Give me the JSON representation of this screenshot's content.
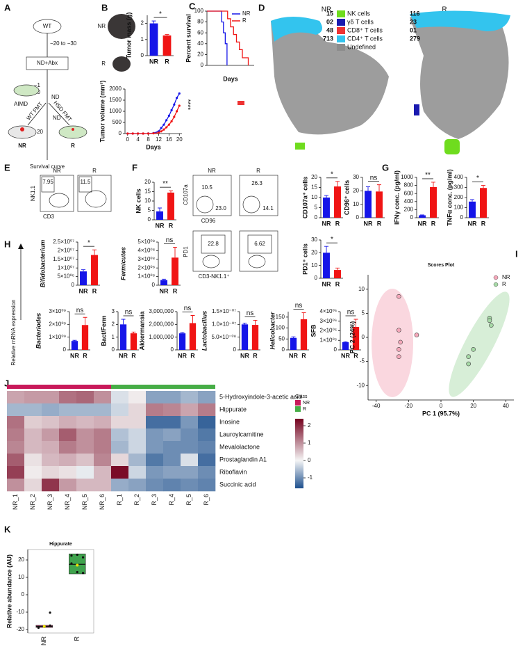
{
  "panels": [
    "A",
    "B",
    "C",
    "D",
    "E",
    "F",
    "G",
    "H",
    "I",
    "J",
    "K"
  ],
  "diagram": {
    "wt": "WT",
    "days": "−20 to −30",
    "treat": "ND+Abx",
    "d1": "−1",
    "d0": "0",
    "aimd": "AIMD",
    "nd_top": "ND",
    "wt_fmt": "WT FMT",
    "hsd_fmt": "HSD FMT",
    "nd": "ND",
    "d20": "20",
    "nr": "NR",
    "r": "R",
    "survival": "Survival curve"
  },
  "photo_labels": [
    "NR",
    "R"
  ],
  "tsne": {
    "titles": [
      "NR",
      "R"
    ],
    "legend": [
      {
        "name": "NK cells",
        "color": "#6fdc1e",
        "nr": 15,
        "r": 116
      },
      {
        "name": "γδ T cells",
        "color": "#1a1ab0",
        "nr": "02",
        "r": 23
      },
      {
        "name": "CD8⁺ T cells",
        "color": "#ee3333",
        "nr": 48,
        "r": "01"
      },
      {
        "name": "CD4⁺ T cells",
        "color": "#33c4ee",
        "nr": 713,
        "r": 279
      },
      {
        "name": "Undefined",
        "color": "#8c8c8c"
      }
    ]
  },
  "flow": {
    "e": {
      "nr": "NR",
      "r": "R",
      "g1": "7.95",
      "g2": "11.5",
      "y": "NK1.1",
      "x": "CD3"
    },
    "f": {
      "nr": "NR",
      "r": "R",
      "g1": "10.5",
      "g2": "23.0",
      "g3": "26.3",
      "g4": "14.1",
      "y": "CD107a",
      "x": "CD96",
      "g5": "22.8",
      "g6": "6.62",
      "y2": "PD1",
      "x2": "CD3-NK1.1⁺"
    }
  },
  "h_label": "Relative mRNA expression",
  "chart_data": [
    {
      "type": "bar",
      "ylabel": "Tumor mass (g)",
      "categories": [
        "NR",
        "R"
      ],
      "values": [
        2.0,
        1.25
      ],
      "errors": [
        0.15,
        0.06
      ],
      "colors": [
        "#1515e8",
        "#f01414"
      ],
      "ylim": [
        0,
        2.5
      ],
      "yticks": [
        0,
        1,
        2
      ],
      "annotation": "*"
    },
    {
      "type": "line",
      "ylabel": "Tumor volume (mm³)",
      "xlabel": "Days",
      "x": [
        0,
        2,
        4,
        6,
        8,
        10,
        12,
        13,
        14,
        15,
        16,
        17,
        18,
        19,
        20
      ],
      "xlim": [
        -1,
        21
      ],
      "xticks": [
        0,
        4,
        8,
        12,
        16,
        20
      ],
      "ylim": [
        0,
        2000
      ],
      "yticks": [
        0,
        500,
        1000,
        1500,
        2000
      ],
      "annotation": "****",
      "markers": true,
      "series": [
        {
          "name": "NR",
          "color": "#1515e8",
          "values": [
            0,
            0,
            0,
            0,
            5,
            20,
            100,
            250,
            400,
            600,
            800,
            1050,
            1300,
            1600,
            1800
          ]
        },
        {
          "name": "R",
          "color": "#f01414",
          "values": [
            0,
            0,
            0,
            0,
            0,
            10,
            40,
            100,
            180,
            280,
            400,
            550,
            750,
            1000,
            1250
          ]
        }
      ]
    },
    {
      "type": "line",
      "ylabel": "Percent survival",
      "xlabel": "Days",
      "xlim": [
        0,
        80
      ],
      "ylim": [
        0,
        100
      ],
      "yticks": [
        0,
        20,
        40,
        60,
        80,
        100
      ],
      "legend": "upper right",
      "series": [
        {
          "name": "NR",
          "color": "#1515e8",
          "x": [
            0,
            25,
            25,
            28,
            28,
            31,
            31,
            34,
            34
          ],
          "values": [
            100,
            100,
            80,
            80,
            60,
            60,
            40,
            40,
            0
          ]
        },
        {
          "name": "R",
          "color": "#f01414",
          "x": [
            0,
            35,
            35,
            40,
            40,
            45,
            45,
            50,
            50,
            55,
            55,
            60,
            60,
            70,
            70
          ],
          "values": [
            100,
            100,
            86,
            86,
            71,
            71,
            57,
            57,
            43,
            43,
            29,
            29,
            14,
            14,
            0
          ]
        }
      ]
    },
    {
      "type": "bar",
      "ylabel": "NK cells",
      "categories": [
        "NR",
        "R"
      ],
      "values": [
        4.5,
        14.5
      ],
      "errors": [
        1.8,
        1.0
      ],
      "colors": [
        "#1515e8",
        "#f01414"
      ],
      "ylim": [
        0,
        20
      ],
      "yticks": [
        0,
        5,
        10,
        15,
        20
      ],
      "annotation": "**"
    },
    {
      "type": "bar",
      "ylabel": "CD107a⁺ cells",
      "categories": [
        "NR",
        "R"
      ],
      "values": [
        10,
        15.5
      ],
      "errors": [
        1,
        2.5
      ],
      "colors": [
        "#1515e8",
        "#f01414"
      ],
      "ylim": [
        0,
        20
      ],
      "yticks": [
        0,
        5,
        10,
        15,
        20
      ],
      "annotation": "*"
    },
    {
      "type": "bar",
      "ylabel": "CD96⁺ cells",
      "categories": [
        "NR",
        "R"
      ],
      "values": [
        20,
        19.5
      ],
      "errors": [
        3,
        5
      ],
      "colors": [
        "#1515e8",
        "#f01414"
      ],
      "ylim": [
        0,
        30
      ],
      "yticks": [
        0,
        10,
        20,
        30
      ],
      "annotation": "ns"
    },
    {
      "type": "bar",
      "ylabel": "PD1⁺ cells",
      "categories": [
        "NR",
        "R"
      ],
      "values": [
        20,
        6.5
      ],
      "errors": [
        5,
        1.5
      ],
      "colors": [
        "#1515e8",
        "#f01414"
      ],
      "ylim": [
        0,
        30
      ],
      "yticks": [
        0,
        10,
        20,
        30
      ],
      "annotation": "*"
    },
    {
      "type": "bar",
      "ylabel": "IFNγ conc. (pg/ml)",
      "categories": [
        "NR",
        "R"
      ],
      "values": [
        60,
        760
      ],
      "errors": [
        10,
        120
      ],
      "colors": [
        "#1515e8",
        "#f01414"
      ],
      "ylim": [
        0,
        1000
      ],
      "yticks": [
        0,
        200,
        400,
        600,
        800,
        1000
      ],
      "annotation": "**"
    },
    {
      "type": "bar",
      "ylabel": "TNFα conc. (pg/ml)",
      "categories": [
        "NR",
        "R"
      ],
      "values": [
        160,
        295
      ],
      "errors": [
        20,
        25
      ],
      "colors": [
        "#1515e8",
        "#f01414"
      ],
      "ylim": [
        0,
        400
      ],
      "yticks": [
        0,
        100,
        200,
        300,
        400
      ],
      "annotation": "*"
    },
    {
      "type": "bar",
      "ylabel": "Bifidobacterium",
      "categories": [
        "NR",
        "R"
      ],
      "values": [
        8000000,
        17500000
      ],
      "errors": [
        1000000,
        3000000
      ],
      "colors": [
        "#1515e8",
        "#f01414"
      ],
      "ylim": [
        0,
        25000000
      ],
      "yticks": [
        0,
        {
          "value": 5000000,
          "label": "5×10⁰⁶"
        },
        {
          "value": 10000000,
          "label": "1×10⁰⁷"
        },
        {
          "value": 15000000,
          "label": "1.5×10⁰⁷"
        },
        {
          "value": 20000000,
          "label": "2×10⁰⁷"
        },
        {
          "value": 25000000,
          "label": "2.5×10⁰⁷"
        }
      ],
      "annotation": "*"
    },
    {
      "type": "bar",
      "ylabel": "Fermicutes",
      "categories": [
        "NR",
        "R"
      ],
      "values": [
        60000000,
        320000000
      ],
      "errors": [
        10000000,
        120000000
      ],
      "colors": [
        "#1515e8",
        "#f01414"
      ],
      "ylim": [
        0,
        500000000
      ],
      "yticks": [
        0,
        {
          "value": 100000000,
          "label": "1×10⁰⁸"
        },
        {
          "value": 200000000,
          "label": "2×10⁰⁸"
        },
        {
          "value": 300000000,
          "label": "3×10⁰⁸"
        },
        {
          "value": 400000000,
          "label": "4×10⁰⁸"
        },
        {
          "value": 500000000,
          "label": "5×10⁰⁸"
        }
      ],
      "annotation": "ns"
    },
    {
      "type": "bar",
      "ylabel": "Bacteriodes",
      "categories": [
        "NR",
        "R"
      ],
      "values": [
        700000000,
        1950000000
      ],
      "errors": [
        50000000,
        600000000
      ],
      "colors": [
        "#1515e8",
        "#f01414"
      ],
      "ylim": [
        0,
        3000000000
      ],
      "yticks": [
        0,
        {
          "value": 1000000000,
          "label": "1×10⁰⁹"
        },
        {
          "value": 2000000000,
          "label": "2×10⁰⁹"
        },
        {
          "value": 3000000000,
          "label": "3×10⁰⁹"
        }
      ],
      "annotation": "ns"
    },
    {
      "type": "bar",
      "ylabel": "Bact/Ferm",
      "categories": [
        "NR",
        "R"
      ],
      "values": [
        2.0,
        1.3
      ],
      "errors": [
        0.4,
        0.1
      ],
      "colors": [
        "#1515e8",
        "#f01414"
      ],
      "ylim": [
        0,
        3
      ],
      "yticks": [
        0,
        1,
        2,
        3
      ],
      "annotation": "ns"
    },
    {
      "type": "bar",
      "ylabel": "Akkermansia",
      "categories": [
        "NR",
        "R"
      ],
      "values": [
        1300000,
        2100000
      ],
      "errors": [
        50000,
        600000
      ],
      "colors": [
        "#1515e8",
        "#f01414"
      ],
      "ylim": [
        0,
        3000000
      ],
      "yticks": [
        0,
        {
          "value": 1000000,
          "label": "1,000,000"
        },
        {
          "value": 2000000,
          "label": "2,000,000"
        },
        {
          "value": 3000000,
          "label": "3,000,000"
        }
      ],
      "annotation": "ns"
    },
    {
      "type": "bar",
      "ylabel": "Lactobacillus",
      "categories": [
        "NR",
        "R"
      ],
      "values": [
        1e-07,
        9.8e-08
      ],
      "errors": [
        5e-09,
        1.8e-08
      ],
      "colors": [
        "#1515e8",
        "#f01414"
      ],
      "ylim": [
        0,
        1.5e-07
      ],
      "yticks": [
        0,
        {
          "value": 5e-08,
          "label": "5.0×10⁻⁰⁸"
        },
        {
          "value": 1e-07,
          "label": "1.0×10⁻⁰⁷"
        },
        {
          "value": 1.5e-07,
          "label": "1.5×10⁻⁰⁷"
        }
      ],
      "annotation": "ns"
    },
    {
      "type": "bar",
      "ylabel": "Helicobacter",
      "categories": [
        "NR",
        "R"
      ],
      "values": [
        55,
        140
      ],
      "errors": [
        5,
        30
      ],
      "colors": [
        "#1515e8",
        "#f01414"
      ],
      "ylim": [
        0,
        175
      ],
      "yticks": [
        0,
        50,
        100,
        150
      ],
      "annotation": "ns"
    },
    {
      "type": "bar",
      "ylabel": "SFB",
      "categories": [
        "NR",
        "R"
      ],
      "values": [
        800000,
        2400000
      ],
      "errors": [
        50000,
        800000
      ],
      "colors": [
        "#1515e8",
        "#f01414"
      ],
      "ylim": [
        0,
        4000000
      ],
      "yticks": [
        0,
        {
          "value": 1000000,
          "label": "1×10⁰⁶"
        },
        {
          "value": 2000000,
          "label": "2×10⁰⁶"
        },
        {
          "value": 3000000,
          "label": "3×10⁰⁶"
        },
        {
          "value": 4000000,
          "label": "4×10⁰⁶"
        }
      ],
      "annotation": "ns"
    },
    {
      "type": "scatter",
      "title": "Scores Plot",
      "xlabel": "PC 1 (95.7%)",
      "ylabel": "PC 2 (24%)",
      "xlim": [
        -45,
        45
      ],
      "ylim": [
        -13,
        13
      ],
      "xticks": [
        -40,
        -20,
        0,
        20,
        40
      ],
      "yticks": [
        -10,
        -5,
        0,
        5,
        10
      ],
      "legend": "upper right",
      "series": [
        {
          "name": "NR",
          "color": "#f4a7b9",
          "x": [
            -26,
            -26,
            -25,
            -26,
            -26,
            -15
          ],
          "y": [
            8.5,
            1.5,
            -1,
            -2.5,
            -4,
            0.5
          ]
        },
        {
          "name": "R",
          "color": "#a6d9a6",
          "x": [
            30,
            31,
            30,
            20,
            17,
            17
          ],
          "y": [
            4,
            2.5,
            3.5,
            -2.5,
            -4,
            -5.5
          ]
        }
      ]
    },
    {
      "type": "heatmap",
      "rows": [
        "5-Hydroxyindole-3-acetic acid",
        "Hippurate",
        "Inosine",
        "Lauroylcarnitine",
        "Mevalolactone",
        "Prostaglandin A1",
        "Riboflavin",
        "Succinic acid"
      ],
      "columns": [
        "NR_1",
        "NR_2",
        "NR_3",
        "NR_4",
        "NR_5",
        "NR_6",
        "R_1",
        "R_2",
        "R_3",
        "R_4",
        "R_5",
        "R_6"
      ],
      "column_classes": [
        "NR",
        "NR",
        "NR",
        "NR",
        "NR",
        "NR",
        "R",
        "R",
        "R",
        "R",
        "R",
        "R"
      ],
      "class_title": "Class",
      "class_names": [
        "NR",
        "R"
      ],
      "class_colors": [
        "#c8195a",
        "#46ad46"
      ],
      "colors": [
        "#1c4f8d",
        "#f5f5f5",
        "#75021f"
      ],
      "zlim": [
        -1.6,
        2.4
      ],
      "colorbar_ticks": [
        -1,
        0,
        1,
        2
      ],
      "values": [
        [
          0.8,
          0.9,
          0.9,
          1.3,
          1.4,
          1.0,
          -0.2,
          0.1,
          -0.8,
          -0.8,
          -0.6,
          -0.8
        ],
        [
          -0.6,
          -0.6,
          -0.7,
          -0.6,
          -0.6,
          -0.6,
          -0.3,
          0.3,
          1.2,
          1.1,
          0.8,
          1.2
        ],
        [
          1.3,
          0.4,
          0.5,
          0.7,
          0.6,
          0.7,
          0.3,
          0.3,
          -1.3,
          -1.3,
          -0.9,
          -1.4
        ],
        [
          1.2,
          0.6,
          0.9,
          1.5,
          1.0,
          1.2,
          -0.5,
          -0.3,
          -0.9,
          -0.8,
          -1.0,
          -1.2
        ],
        [
          1.1,
          0.6,
          0.7,
          1.2,
          1.0,
          1.2,
          -0.6,
          -0.3,
          -0.9,
          -1.0,
          -1.0,
          -1.1
        ],
        [
          1.5,
          0.2,
          0.6,
          0.7,
          0.5,
          1.1,
          0.3,
          -0.6,
          -1.2,
          -1.0,
          -0.2,
          -1.3
        ],
        [
          1.8,
          0.1,
          0.3,
          0.2,
          -0.1,
          0.6,
          2.3,
          -0.3,
          -0.9,
          -0.8,
          -0.8,
          -1.0
        ],
        [
          1.0,
          0.3,
          1.9,
          0.9,
          0.6,
          0.6,
          -0.7,
          -0.8,
          -1.0,
          -1.1,
          -1.0,
          -1.1
        ]
      ]
    },
    {
      "type": "box",
      "title": "Hippurate",
      "ylabel": "Relative abundance (AU)",
      "categories": [
        "NR",
        "R"
      ],
      "ylim": [
        -22,
        26
      ],
      "yticks": [
        -20,
        -10,
        0,
        10,
        20
      ],
      "mean_color": "#f2e200",
      "boxes": [
        {
          "color": "#b8396b",
          "q1": -18.8,
          "median": -18.2,
          "q3": -17.6,
          "whisker_low": -19.2,
          "whisker_high": -17.2,
          "mean": -18.2,
          "points": [
            -18.6,
            -18.1,
            -17.7,
            -19.0,
            -18.4,
            -10.3
          ]
        },
        {
          "color": "#3fa34d",
          "q1": 12.0,
          "median": 17.5,
          "q3": 23.5,
          "whisker_low": 12.0,
          "whisker_high": 23.5,
          "mean": 17.0,
          "points": [
            22.5,
            23.0,
            21.5,
            18.0,
            13.0,
            12.5
          ]
        }
      ]
    }
  ]
}
